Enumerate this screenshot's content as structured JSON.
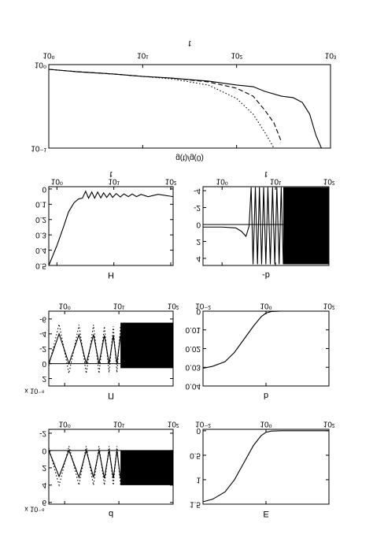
{
  "chart_data": [
    {
      "type": "line",
      "xlabel": "t",
      "ylabel": "g(t)/g(0)",
      "xscale": "log",
      "yscale": "log",
      "xlim": [
        1,
        1000
      ],
      "xticks": [
        {
          "value": 1,
          "label": "10⁰"
        },
        {
          "value": 10,
          "label": "10¹"
        },
        {
          "value": 100,
          "label": "10²"
        },
        {
          "value": 1000,
          "label": "10³"
        }
      ],
      "ylim": [
        0.1,
        1
      ],
      "yticks": [
        {
          "value": 0.1,
          "label": "10⁻¹"
        },
        {
          "value": 1,
          "label": "10⁰"
        }
      ],
      "series": [
        {
          "style": "solid",
          "color": "#000000",
          "x": [
            1,
            2,
            5,
            10,
            20,
            50,
            100,
            150,
            200,
            300,
            400,
            500,
            600,
            700,
            800
          ],
          "values": [
            0.878,
            0.822,
            0.77,
            0.722,
            0.691,
            0.634,
            0.569,
            0.544,
            0.478,
            0.419,
            0.402,
            0.353,
            0.255,
            0.142,
            0.1
          ]
        },
        {
          "style": "dashed",
          "color": "#000000",
          "x": [
            1,
            2,
            5,
            10,
            20,
            50,
            100,
            150,
            200,
            250,
            300
          ],
          "values": [
            0.878,
            0.822,
            0.77,
            0.722,
            0.691,
            0.62,
            0.521,
            0.419,
            0.284,
            0.2,
            0.119
          ]
        },
        {
          "style": "dotted",
          "color": "#000000",
          "x": [
            1,
            2,
            5,
            10,
            20,
            50,
            100,
            150,
            200,
            250
          ],
          "values": [
            0.878,
            0.822,
            0.77,
            0.722,
            0.676,
            0.569,
            0.393,
            0.255,
            0.154,
            0.1
          ]
        }
      ]
    },
    {
      "type": "line",
      "title": "H",
      "xlabel": "t",
      "xscale": "log",
      "xlim": [
        0.72,
        110
      ],
      "xticks": [
        {
          "value": 1,
          "label": "10⁰"
        },
        {
          "value": 10,
          "label": "10¹"
        },
        {
          "value": 100,
          "label": "10²"
        }
      ],
      "ylim": [
        0.5,
        -0.015
      ],
      "yticks": [
        0,
        0.1,
        0.2,
        0.3,
        0.4,
        0.5
      ],
      "series": [
        {
          "style": "solid",
          "color": "#000000",
          "x": [
            0.72,
            1,
            1.3,
            1.6,
            2,
            2.4,
            2.8,
            3.2,
            3.6,
            4.1,
            4.6,
            5.2,
            5.9,
            6.6,
            7.5,
            8.5,
            9.5,
            11,
            13,
            15,
            18,
            21,
            25,
            30,
            40,
            60,
            110
          ],
          "values": [
            0.5,
            0.37,
            0.25,
            0.15,
            0.09,
            0.065,
            0.06,
            0.015,
            0.06,
            0.02,
            0.06,
            0.02,
            0.058,
            0.025,
            0.055,
            0.028,
            0.055,
            0.03,
            0.052,
            0.032,
            0.05,
            0.033,
            0.05,
            0.035,
            0.05,
            0.035,
            0.05
          ]
        }
      ]
    },
    {
      "type": "line",
      "title": "-b",
      "xlabel": "t",
      "xscale": "log",
      "xlim": [
        0.44,
        100
      ],
      "xticks": [
        {
          "value": 1,
          "label": "10⁰"
        },
        {
          "value": 10,
          "label": "10¹"
        },
        {
          "value": 100,
          "label": "10²"
        }
      ],
      "ylim": [
        4.84,
        -4.47
      ],
      "yticks": [
        -4,
        -2,
        0,
        2,
        4
      ],
      "hline": 0,
      "series": [
        {
          "style": "solid",
          "color": "#000000",
          "x": [
            0.44,
            1,
            1.8,
            2.3,
            2.8,
            3.2,
            3.5,
            3.8,
            4.2,
            4.6,
            5,
            5.5,
            6,
            6.6,
            7.2,
            8,
            8.8,
            9.7,
            10.6,
            11.7,
            12.8,
            14
          ],
          "values": [
            0.3,
            0.3,
            0.4,
            0.8,
            1.4,
            0.2,
            -4.4,
            4.7,
            -4.4,
            4.7,
            -4.4,
            4.7,
            -4.4,
            4.7,
            -4.4,
            4.7,
            -4.4,
            4.7,
            -4.4,
            4.7,
            -4.4,
            4.7
          ]
        }
      ],
      "bands": [
        {
          "x": [
            14,
            100
          ],
          "min": [
            -4.4,
            -4.4
          ],
          "max": [
            4.7,
            4.7
          ]
        }
      ]
    },
    {
      "type": "line",
      "title": "Π",
      "scale_label": "x 10⁻⁶",
      "xscale": "log",
      "xlim": [
        0.51,
        100
      ],
      "xticks": [
        {
          "value": 1,
          "label": "10⁰"
        },
        {
          "value": 10,
          "label": "10¹"
        },
        {
          "value": 100,
          "label": "10²"
        }
      ],
      "ylim": [
        3,
        -7.05
      ],
      "yticks": [
        -6,
        -4,
        -2,
        0,
        2
      ],
      "hline": 0,
      "series": [
        {
          "style": "solid",
          "color": "#000000",
          "x": [
            0.51,
            0.79,
            1.2,
            1.84,
            2.5,
            3.4,
            4.3,
            5.4,
            6.6,
            7.9,
            9.2,
            10.7
          ],
          "values": [
            0,
            -4,
            0,
            -3.9,
            0,
            -3.9,
            0,
            -3.8,
            0,
            -3.8,
            0,
            -3.8
          ]
        },
        {
          "style": "dotted",
          "color": "#000000",
          "x": [
            0.51,
            0.79,
            1.2,
            1.84,
            2.5,
            3.4,
            4.3,
            5.4,
            6.6,
            7.9,
            9.2,
            10.7
          ],
          "values": [
            0.3,
            -5.3,
            1.3,
            -5.2,
            1.3,
            -5.2,
            1.3,
            -5,
            1.2,
            -5,
            1.2,
            -5
          ]
        }
      ],
      "bands": [
        {
          "x": [
            10.7,
            100
          ],
          "min": [
            -5.5,
            -5.5
          ],
          "max": [
            0.6,
            0.6
          ]
        }
      ]
    },
    {
      "type": "line",
      "title": "b",
      "xscale": "log",
      "xlim": [
        0.01,
        100
      ],
      "xticks": [
        {
          "value": 0.01,
          "label": "10⁻²"
        },
        {
          "value": 1,
          "label": "10⁰"
        },
        {
          "value": 100,
          "label": "10²"
        }
      ],
      "ylim": [
        0.04,
        0
      ],
      "yticks": [
        0,
        0.01,
        0.02,
        0.03,
        0.04
      ],
      "series": [
        {
          "style": "solid",
          "color": "#000000",
          "x": [
            0.01,
            0.02,
            0.05,
            0.1,
            0.2,
            0.4,
            0.7,
            1,
            1.5,
            3,
            100
          ],
          "values": [
            0.0305,
            0.0295,
            0.027,
            0.022,
            0.015,
            0.008,
            0.003,
            0.001,
            0.0002,
            0,
            0
          ]
        }
      ]
    },
    {
      "type": "line",
      "title": "d",
      "scale_label": "x 10⁻⁶",
      "xscale": "log",
      "xlim": [
        0.51,
        100
      ],
      "xticks": [
        {
          "value": 1,
          "label": "10⁰"
        },
        {
          "value": 10,
          "label": "10¹"
        },
        {
          "value": 100,
          "label": "10²"
        }
      ],
      "ylim": [
        6.2,
        -2.45
      ],
      "yticks": [
        -2,
        0,
        2,
        4,
        6
      ],
      "hline": 0,
      "series": [
        {
          "style": "solid",
          "color": "#000000",
          "x": [
            0.51,
            0.79,
            1.2,
            1.84,
            2.5,
            3.4,
            4.3,
            5.4,
            6.6,
            7.9,
            9.2,
            10.7
          ],
          "values": [
            0,
            3,
            0,
            3.1,
            0,
            3.1,
            0,
            3.2,
            0,
            3.2,
            0,
            3.2
          ]
        },
        {
          "style": "dotted",
          "color": "#000000",
          "x": [
            0.51,
            0.79,
            1.2,
            1.84,
            2.5,
            3.4,
            4.3,
            5.4,
            6.6,
            7.9,
            9.2,
            10.7
          ],
          "values": [
            -0.3,
            4,
            -0.5,
            4,
            -0.5,
            4,
            -0.5,
            4,
            -0.5,
            4,
            -0.5,
            4
          ]
        }
      ],
      "bands": [
        {
          "x": [
            10.7,
            100
          ],
          "min": [
            0,
            0
          ],
          "max": [
            4,
            4
          ]
        }
      ]
    },
    {
      "type": "line",
      "title": "E",
      "xscale": "log",
      "xlim": [
        0.01,
        100
      ],
      "xticks": [
        {
          "value": 0.01,
          "label": "10⁻²"
        },
        {
          "value": 1,
          "label": "10⁰"
        },
        {
          "value": 100,
          "label": "10²"
        }
      ],
      "ylim": [
        1.5,
        -0.03
      ],
      "yticks": [
        0,
        0.5,
        1,
        1.5
      ],
      "series": [
        {
          "style": "solid",
          "color": "#000000",
          "x": [
            0.01,
            0.02,
            0.05,
            0.1,
            0.2,
            0.4,
            0.7,
            1,
            1.5,
            3,
            100
          ],
          "values": [
            1.45,
            1.4,
            1.25,
            1,
            0.65,
            0.3,
            0.1,
            0.03,
            0.005,
            0,
            0
          ]
        }
      ]
    }
  ]
}
